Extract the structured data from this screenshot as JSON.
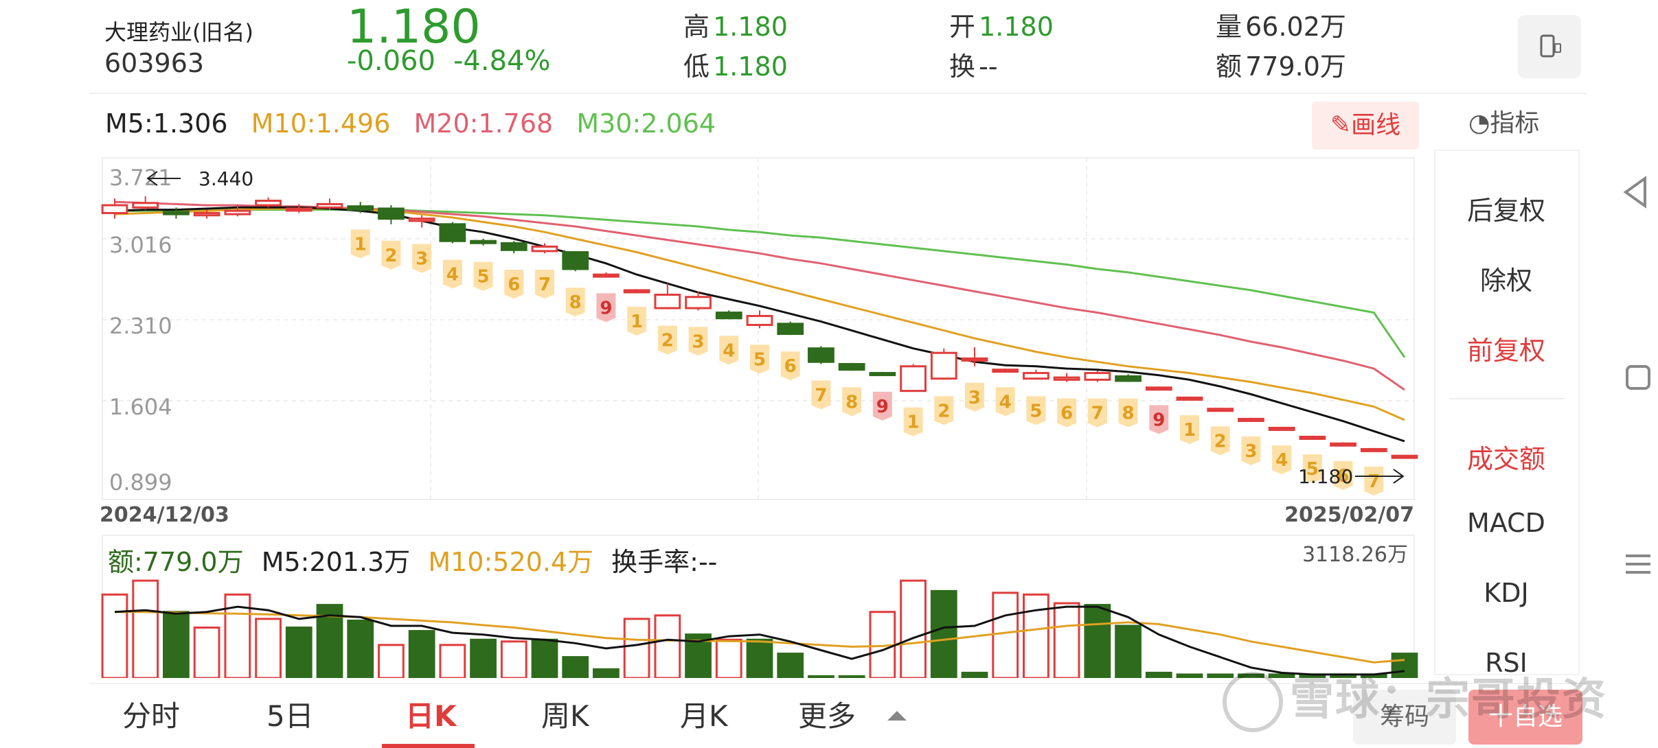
{
  "stock": {
    "name": "大理药业(旧名)",
    "code": "603963",
    "price": "1.180",
    "change": "-0.060",
    "change_pct": "-4.84%"
  },
  "quote": {
    "high_label": "高",
    "high": "1.180",
    "low_label": "低",
    "low": "1.180",
    "open_label": "开",
    "open": "1.180",
    "turnover_label": "换",
    "turnover": "--",
    "volume_label": "量",
    "volume": "66.02万",
    "amount_label": "额",
    "amount": "779.0万"
  },
  "ma_legend": {
    "m5": "M5:1.306",
    "m10": "M10:1.496",
    "m20": "M20:1.768",
    "m30": "M30:2.064"
  },
  "draw_button": "画线",
  "indicator_label": "指标",
  "price_axis": [
    "3.721",
    "3.016",
    "2.310",
    "1.604",
    "0.899"
  ],
  "marker_high": "3.440",
  "marker_low": "1.180",
  "date_start": "2024/12/03",
  "date_end": "2025/02/07",
  "volume_legend": {
    "amount": "额:779.0万",
    "m5": "M5:201.3万",
    "m10": "M10:520.4万",
    "turnover": "换手率:--",
    "max": "3118.26万"
  },
  "side_menu": [
    "后复权",
    "除权",
    "前复权",
    "成交额",
    "MACD",
    "KDJ",
    "RSI"
  ],
  "tabs": [
    "分时",
    "5日",
    "日K",
    "周K",
    "月K",
    "更多"
  ],
  "bottom_buttons": {
    "chips": "筹码",
    "add": "十自选"
  },
  "watermark": "雪球：宗哥投资",
  "colors": {
    "up": "#e03c3c",
    "down": "#2e6b1c",
    "green_text": "#2e9b2e",
    "m10": "#e0a020",
    "m20": "#e06070",
    "m30": "#60c050"
  },
  "chart_data": {
    "type": "candlestick",
    "ylim": [
      0.899,
      3.721
    ],
    "candles": [
      [
        3.35,
        3.42,
        3.48,
        3.3
      ],
      [
        3.4,
        3.44,
        3.5,
        3.38
      ],
      [
        3.36,
        3.34,
        3.4,
        3.3
      ],
      [
        3.33,
        3.35,
        3.38,
        3.3
      ],
      [
        3.34,
        3.37,
        3.42,
        3.32
      ],
      [
        3.42,
        3.46,
        3.49,
        3.4
      ],
      [
        3.38,
        3.39,
        3.43,
        3.35
      ],
      [
        3.4,
        3.43,
        3.48,
        3.38
      ],
      [
        3.41,
        3.38,
        3.45,
        3.35
      ],
      [
        3.39,
        3.3,
        3.42,
        3.25
      ],
      [
        3.28,
        3.3,
        3.33,
        3.22
      ],
      [
        3.25,
        3.1,
        3.27,
        3.08
      ],
      [
        3.1,
        3.09,
        3.12,
        3.06
      ],
      [
        3.08,
        3.02,
        3.1,
        2.99
      ],
      [
        3.01,
        3.05,
        3.08,
        2.99
      ],
      [
        3.0,
        2.85,
        3.01,
        2.83
      ],
      [
        2.8,
        2.8,
        2.82,
        2.78
      ],
      [
        2.66,
        2.66,
        2.67,
        2.66
      ],
      [
        2.5,
        2.62,
        2.72,
        2.49
      ],
      [
        2.5,
        2.6,
        2.65,
        2.48
      ],
      [
        2.46,
        2.41,
        2.48,
        2.4
      ],
      [
        2.35,
        2.43,
        2.48,
        2.32
      ],
      [
        2.36,
        2.27,
        2.38,
        2.26
      ],
      [
        2.14,
        2.02,
        2.16,
        2.0
      ],
      [
        2.0,
        1.95,
        2.01,
        1.94
      ],
      [
        1.92,
        1.91,
        1.93,
        1.9
      ],
      [
        1.76,
        1.98,
        2.0,
        1.76
      ],
      [
        1.87,
        2.1,
        2.14,
        1.86
      ],
      [
        2.05,
        2.05,
        2.15,
        1.98
      ],
      [
        1.95,
        1.95,
        1.96,
        1.94
      ],
      [
        1.87,
        1.92,
        1.95,
        1.86
      ],
      [
        1.86,
        1.88,
        1.92,
        1.84
      ],
      [
        1.86,
        1.92,
        1.94,
        1.84
      ],
      [
        1.89,
        1.85,
        1.91,
        1.84
      ],
      [
        1.79,
        1.79,
        1.8,
        1.78
      ],
      [
        1.7,
        1.7,
        1.71,
        1.69
      ],
      [
        1.6,
        1.6,
        1.61,
        1.59
      ],
      [
        1.51,
        1.51,
        1.52,
        1.5
      ],
      [
        1.43,
        1.43,
        1.44,
        1.42
      ],
      [
        1.35,
        1.35,
        1.36,
        1.34
      ],
      [
        1.29,
        1.29,
        1.3,
        1.28
      ],
      [
        1.24,
        1.24,
        1.25,
        1.23
      ],
      [
        1.18,
        1.18,
        1.18,
        1.18
      ]
    ],
    "ma5": [
      3.37,
      3.38,
      3.38,
      3.39,
      3.4,
      3.4,
      3.4,
      3.39,
      3.37,
      3.34,
      3.28,
      3.22,
      3.18,
      3.12,
      3.05,
      2.98,
      2.9,
      2.8,
      2.72,
      2.64,
      2.58,
      2.52,
      2.45,
      2.38,
      2.3,
      2.22,
      2.14,
      2.08,
      2.02,
      1.99,
      1.98,
      1.96,
      1.95,
      1.93,
      1.9,
      1.86,
      1.8,
      1.73,
      1.65,
      1.57,
      1.49,
      1.4,
      1.31
    ],
    "ma10": [
      3.34,
      3.35,
      3.36,
      3.37,
      3.38,
      3.39,
      3.39,
      3.39,
      3.38,
      3.37,
      3.34,
      3.31,
      3.27,
      3.23,
      3.18,
      3.12,
      3.06,
      3.0,
      2.93,
      2.86,
      2.79,
      2.72,
      2.65,
      2.58,
      2.51,
      2.44,
      2.37,
      2.3,
      2.23,
      2.17,
      2.11,
      2.06,
      2.02,
      1.98,
      1.95,
      1.92,
      1.88,
      1.84,
      1.79,
      1.74,
      1.68,
      1.62,
      1.5
    ],
    "ma20": [
      3.45,
      3.44,
      3.43,
      3.42,
      3.42,
      3.41,
      3.41,
      3.4,
      3.39,
      3.38,
      3.36,
      3.34,
      3.32,
      3.29,
      3.26,
      3.23,
      3.19,
      3.15,
      3.11,
      3.07,
      3.03,
      2.99,
      2.94,
      2.9,
      2.85,
      2.8,
      2.75,
      2.7,
      2.65,
      2.6,
      2.55,
      2.5,
      2.46,
      2.41,
      2.36,
      2.31,
      2.26,
      2.2,
      2.15,
      2.09,
      2.03,
      1.96,
      1.77
    ],
    "ma30": [
      3.37,
      3.37,
      3.37,
      3.38,
      3.38,
      3.38,
      3.38,
      3.38,
      3.38,
      3.38,
      3.37,
      3.36,
      3.35,
      3.34,
      3.33,
      3.31,
      3.29,
      3.27,
      3.25,
      3.23,
      3.2,
      3.18,
      3.15,
      3.13,
      3.1,
      3.07,
      3.04,
      3.01,
      2.98,
      2.95,
      2.92,
      2.89,
      2.85,
      2.82,
      2.78,
      2.74,
      2.7,
      2.66,
      2.61,
      2.56,
      2.51,
      2.46,
      2.06
    ],
    "td_labels": [
      {
        "i": 8,
        "t": "1",
        "red": false
      },
      {
        "i": 9,
        "t": "2",
        "red": false
      },
      {
        "i": 10,
        "t": "3",
        "red": false
      },
      {
        "i": 11,
        "t": "4",
        "red": false
      },
      {
        "i": 12,
        "t": "5",
        "red": false
      },
      {
        "i": 13,
        "t": "6",
        "red": false
      },
      {
        "i": 14,
        "t": "7",
        "red": false
      },
      {
        "i": 15,
        "t": "8",
        "red": false
      },
      {
        "i": 16,
        "t": "9",
        "red": true
      },
      {
        "i": 17,
        "t": "1",
        "red": false
      },
      {
        "i": 18,
        "t": "2",
        "red": false
      },
      {
        "i": 19,
        "t": "3",
        "red": false
      },
      {
        "i": 20,
        "t": "4",
        "red": false
      },
      {
        "i": 21,
        "t": "5",
        "red": false
      },
      {
        "i": 22,
        "t": "6",
        "red": false
      },
      {
        "i": 23,
        "t": "7",
        "red": false
      },
      {
        "i": 24,
        "t": "8",
        "red": false
      },
      {
        "i": 25,
        "t": "9",
        "red": true
      },
      {
        "i": 26,
        "t": "1",
        "red": false
      },
      {
        "i": 27,
        "t": "2",
        "red": false
      },
      {
        "i": 28,
        "t": "3",
        "red": false
      },
      {
        "i": 29,
        "t": "4",
        "red": false
      },
      {
        "i": 30,
        "t": "5",
        "red": false
      },
      {
        "i": 31,
        "t": "6",
        "red": false
      },
      {
        "i": 32,
        "t": "7",
        "red": false
      },
      {
        "i": 33,
        "t": "8",
        "red": false
      },
      {
        "i": 34,
        "t": "9",
        "red": true
      },
      {
        "i": 35,
        "t": "1",
        "red": false
      },
      {
        "i": 36,
        "t": "2",
        "red": false
      },
      {
        "i": 37,
        "t": "3",
        "red": false
      },
      {
        "i": 38,
        "t": "4",
        "red": false
      },
      {
        "i": 39,
        "t": "5",
        "red": false
      },
      {
        "i": 40,
        "t": "6",
        "red": false
      },
      {
        "i": 41,
        "t": "7",
        "red": false
      }
    ],
    "volumes": [
      2400,
      2800,
      1900,
      1450,
      2400,
      1700,
      1450,
      2100,
      1650,
      950,
      1350,
      950,
      1100,
      1050,
      1100,
      600,
      250,
      1700,
      1800,
      1250,
      1100,
      1100,
      700,
      50,
      50,
      1900,
      2800,
      2500,
      150,
      2450,
      2400,
      2150,
      2100,
      1500,
      150,
      100,
      100,
      100,
      100,
      100,
      100,
      100,
      700
    ],
    "volume_up": [
      true,
      true,
      false,
      true,
      true,
      true,
      false,
      false,
      false,
      true,
      false,
      true,
      false,
      true,
      false,
      false,
      false,
      true,
      true,
      false,
      true,
      false,
      false,
      false,
      false,
      true,
      true,
      false,
      false,
      true,
      true,
      true,
      false,
      false,
      false,
      false,
      false,
      false,
      false,
      false,
      false,
      false,
      false
    ],
    "vol_ma5": [
      1900,
      1950,
      1850,
      1900,
      2050,
      1950,
      1700,
      1800,
      1750,
      1500,
      1500,
      1300,
      1250,
      1150,
      1100,
      1000,
      850,
      950,
      1100,
      1050,
      1200,
      1250,
      1050,
      800,
      550,
      800,
      1150,
      1450,
      1500,
      1800,
      1950,
      2050,
      2050,
      1750,
      1250,
      900,
      600,
      300,
      150,
      100,
      100,
      100,
      200
    ],
    "vol_ma10": [
      1900,
      1900,
      1880,
      1860,
      1850,
      1830,
      1800,
      1780,
      1750,
      1700,
      1650,
      1600,
      1520,
      1450,
      1350,
      1250,
      1150,
      1100,
      1080,
      1070,
      1060,
      1050,
      1000,
      950,
      900,
      920,
      1000,
      1100,
      1200,
      1300,
      1400,
      1500,
      1550,
      1600,
      1550,
      1400,
      1250,
      1050,
      900,
      750,
      600,
      450,
      520
    ]
  }
}
